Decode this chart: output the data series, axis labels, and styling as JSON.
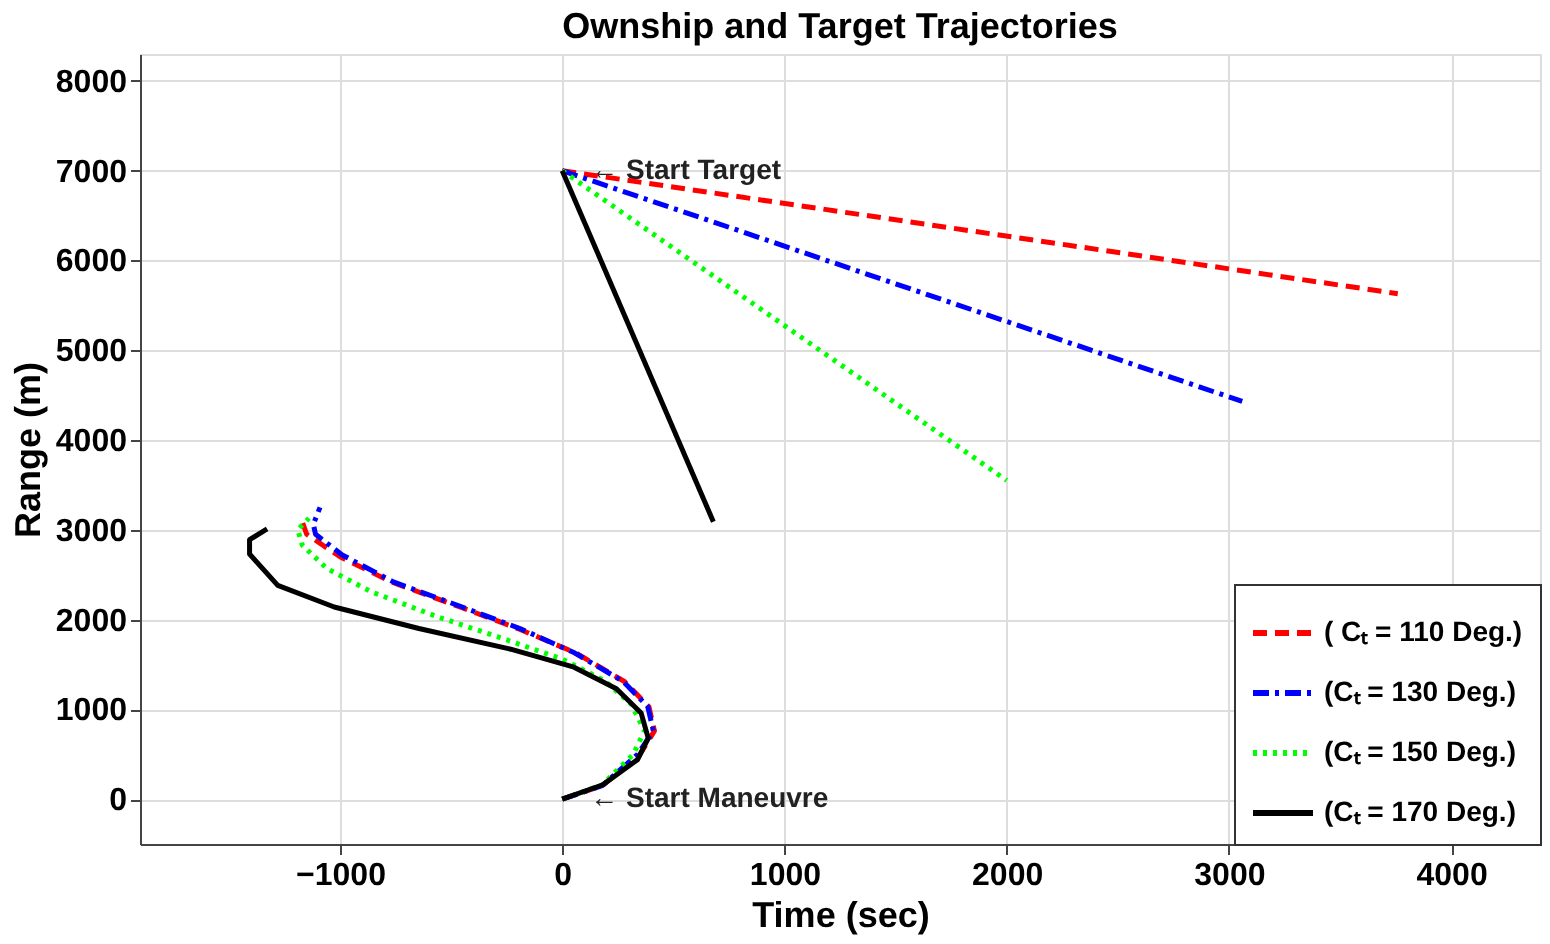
{
  "chart_data": {
    "type": "line",
    "title": "Ownship and Target Trajectories",
    "xlabel": "Time (sec)",
    "ylabel": "Range (m)",
    "xlim": [
      -1900,
      4400
    ],
    "ylim": [
      -500,
      8300
    ],
    "xticks": [
      -1000,
      0,
      1000,
      2000,
      3000,
      4000
    ],
    "yticks": [
      0,
      1000,
      2000,
      3000,
      4000,
      5000,
      6000,
      7000,
      8000
    ],
    "grid": true,
    "legend": "bottom right",
    "marker": "none",
    "series": [
      {
        "name": "( Cₜ = 110 Deg.)",
        "color": "#ff0000",
        "line_style": "dashed",
        "x": [
          0,
          3760,
          null,
          0,
          180,
          350,
          415,
          390,
          280,
          60,
          -200,
          -460,
          -770,
          -1000,
          -1150,
          -1170
        ],
        "values": [
          7000,
          5630,
          null,
          0,
          150,
          500,
          760,
          1030,
          1310,
          1630,
          1900,
          2140,
          2420,
          2700,
          2950,
          3090
        ]
      },
      {
        "name": "(Cₜ =  130 Deg.)",
        "color": "#0000ff",
        "line_style": "dashdot",
        "x": [
          0,
          3060,
          null,
          0,
          180,
          340,
          410,
          385,
          275,
          55,
          -190,
          -450,
          -760,
          -990,
          -1110,
          -1120,
          -1090
        ],
        "values": [
          7000,
          4430,
          null,
          0,
          150,
          500,
          760,
          1030,
          1310,
          1630,
          1900,
          2140,
          2420,
          2720,
          2950,
          3060,
          3250
        ]
      },
      {
        "name": "(Cₜ =  150 Deg.)",
        "color": "#00ff00",
        "line_style": "dotted",
        "x": [
          0,
          2000,
          null,
          0,
          180,
          320,
          370,
          310,
          190,
          0,
          -280,
          -560,
          -860,
          -1060,
          -1170,
          -1190,
          -1140
        ],
        "values": [
          7000,
          3550,
          null,
          0,
          160,
          500,
          760,
          1060,
          1320,
          1560,
          1800,
          2030,
          2310,
          2570,
          2830,
          3000,
          3130
        ]
      },
      {
        "name": "(Cₜ =  170 Deg.)",
        "color": "#000000",
        "line_style": "solid",
        "x": [
          0,
          680,
          null,
          0,
          183,
          339,
          387,
          355,
          244,
          53,
          -232,
          -645,
          -1026,
          -1280,
          -1407,
          -1407,
          -1328
        ],
        "values": [
          7000,
          3090,
          null,
          0,
          160,
          440,
          680,
          960,
          1230,
          1470,
          1670,
          1900,
          2140,
          2380,
          2730,
          2890,
          3010
        ]
      }
    ],
    "annotations": [
      {
        "text": "← Start Target",
        "x": 0,
        "y": 7000
      },
      {
        "text": "← Start Maneuvre",
        "x": 0,
        "y": 0
      }
    ]
  }
}
